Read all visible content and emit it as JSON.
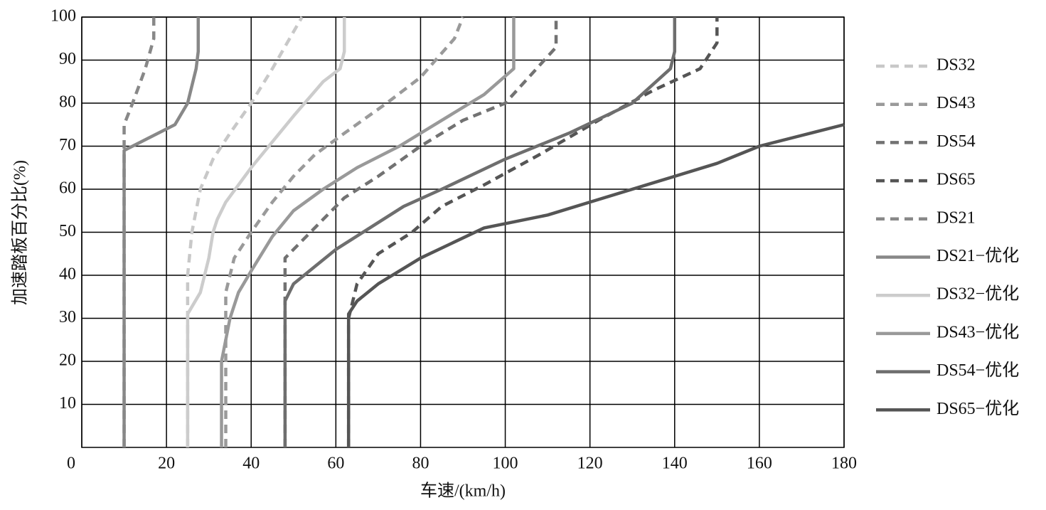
{
  "chart_data": {
    "type": "line",
    "xlabel": "车速/(km/h)",
    "ylabel": "加速踏板百分比(%)",
    "xlim": [
      0,
      180
    ],
    "xticks": [
      0,
      20,
      40,
      60,
      80,
      100,
      120,
      140,
      160,
      180
    ],
    "ylim": [
      0,
      100
    ],
    "yticks": [
      10,
      20,
      30,
      40,
      50,
      60,
      70,
      80,
      90,
      100
    ],
    "grid": true,
    "legend": "right",
    "series": [
      {
        "name": "DS32",
        "color": "#c8c8c8",
        "dashed": true,
        "x": [
          25,
          25,
          26,
          28,
          31,
          35,
          40,
          45,
          52
        ],
        "values": [
          0,
          40,
          50,
          60,
          67,
          73,
          80,
          88,
          100
        ]
      },
      {
        "name": "DS43",
        "color": "#9a9a9a",
        "dashed": true,
        "x": [
          34,
          34,
          36,
          40,
          45,
          50,
          55,
          62,
          72,
          80,
          88,
          90
        ],
        "values": [
          0,
          36,
          44,
          50,
          57,
          63,
          68,
          73,
          80,
          86,
          95,
          100
        ]
      },
      {
        "name": "DS54",
        "color": "#727272",
        "dashed": true,
        "x": [
          48,
          48,
          52,
          58,
          62,
          70,
          80,
          90,
          100,
          112,
          112
        ],
        "values": [
          0,
          44,
          48,
          54,
          58,
          63,
          70,
          76,
          80,
          93,
          100
        ]
      },
      {
        "name": "DS65",
        "color": "#555555",
        "dashed": true,
        "x": [
          63,
          63,
          65,
          70,
          78,
          85,
          95,
          108,
          122,
          135,
          146,
          150,
          150
        ],
        "values": [
          0,
          30,
          38,
          45,
          50,
          56,
          61,
          68,
          76,
          83,
          88,
          94,
          100
        ]
      },
      {
        "name": "DS21",
        "color": "#888888",
        "dashed": true,
        "x": [
          10,
          10,
          12,
          15,
          17,
          17
        ],
        "values": [
          0,
          75,
          80,
          88,
          95,
          100
        ]
      },
      {
        "name": "DS21−优化",
        "color": "#888888",
        "dashed": false,
        "x": [
          10,
          10,
          22,
          25,
          27,
          27.5,
          27.5
        ],
        "values": [
          0,
          69,
          75,
          80,
          88,
          92,
          100
        ]
      },
      {
        "name": "DS32−优化",
        "color": "#cccccc",
        "dashed": false,
        "x": [
          25,
          25,
          28,
          30,
          31,
          32,
          34,
          40,
          50,
          57,
          61,
          62,
          62
        ],
        "values": [
          0,
          31,
          36,
          44,
          50,
          53,
          57,
          65,
          77,
          85,
          88,
          92,
          100
        ]
      },
      {
        "name": "DS43−优化",
        "color": "#999999",
        "dashed": false,
        "x": [
          33,
          33,
          35,
          37,
          40,
          45,
          50,
          57,
          65,
          75,
          85,
          95,
          102,
          102
        ],
        "values": [
          0,
          20,
          30,
          36,
          41,
          49,
          55,
          60,
          65,
          70,
          76,
          82,
          88,
          100
        ]
      },
      {
        "name": "DS54−优化",
        "color": "#6e6e6e",
        "dashed": false,
        "x": [
          48,
          48,
          50,
          55,
          60,
          68,
          76,
          85,
          100,
          115,
          130,
          139,
          140,
          140
        ],
        "values": [
          0,
          34,
          38,
          42,
          46,
          51,
          56,
          60,
          67,
          73,
          80,
          88,
          92,
          100
        ]
      },
      {
        "name": "DS65−优化",
        "color": "#555555",
        "dashed": false,
        "x": [
          63,
          63,
          65,
          70,
          80,
          95,
          110,
          120,
          130,
          140,
          150,
          160,
          170,
          180
        ],
        "values": [
          0,
          31,
          34,
          38,
          44,
          51,
          54,
          57,
          60,
          63,
          66,
          70,
          72.5,
          75
        ]
      }
    ]
  }
}
